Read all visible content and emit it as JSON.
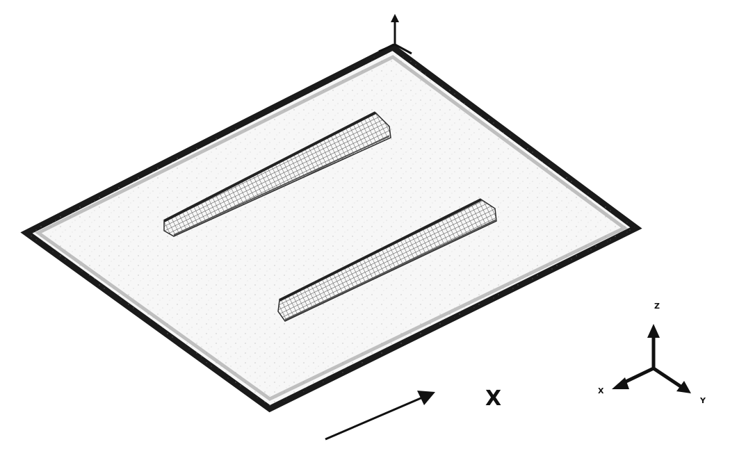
{
  "diagram": {
    "direction_label": "X",
    "triad": {
      "z_label": "Z",
      "x_label": "X",
      "y_label": "Y"
    },
    "colors": {
      "plate_edge": "#1a1a1a",
      "plate_fill": "#f6f6f6",
      "stiffener_mesh": "#333333",
      "arrow": "#111111"
    }
  }
}
